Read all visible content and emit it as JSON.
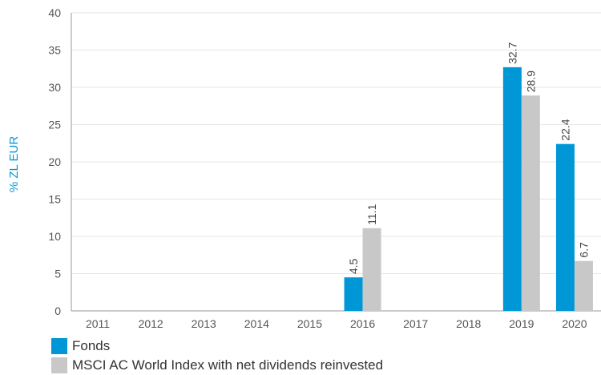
{
  "chart_data": {
    "type": "bar",
    "ylabel": "% ZL EUR",
    "ylim": [
      0,
      40
    ],
    "yticks": [
      0,
      5,
      10,
      15,
      20,
      25,
      30,
      35,
      40
    ],
    "categories": [
      "2011",
      "2012",
      "2013",
      "2014",
      "2015",
      "2016",
      "2017",
      "2018",
      "2019",
      "2020"
    ],
    "series": [
      {
        "name": "Fonds",
        "color": "#0097d7",
        "values": [
          null,
          null,
          null,
          null,
          null,
          4.5,
          null,
          null,
          32.7,
          22.4
        ]
      },
      {
        "name": "MSCI AC World Index with net dividends reinvested",
        "color": "#c8c8c8",
        "values": [
          null,
          null,
          null,
          null,
          null,
          11.1,
          null,
          null,
          28.9,
          6.7
        ]
      }
    ],
    "grid": true,
    "legend_position": "bottom-left"
  }
}
